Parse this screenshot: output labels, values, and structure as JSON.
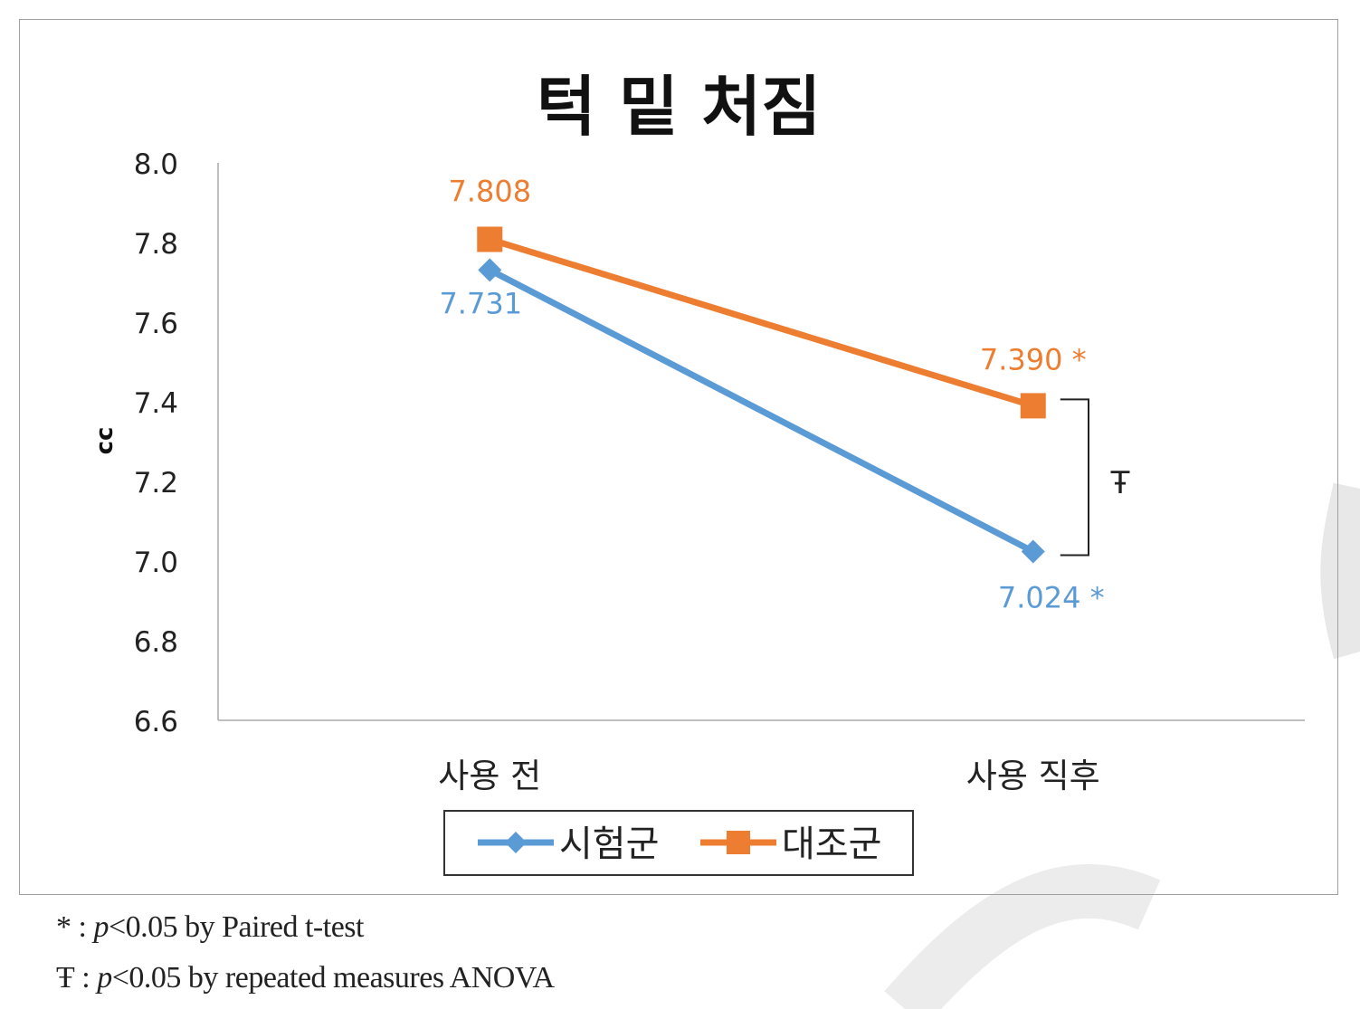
{
  "chart_data": {
    "type": "line",
    "title": "턱 밑 처짐",
    "ylabel": "cc",
    "xlabel": "",
    "categories": [
      "사용 전",
      "사용 직후"
    ],
    "ylim": [
      6.6,
      8.0
    ],
    "yticks": [
      "6.6",
      "6.8",
      "7.0",
      "7.2",
      "7.4",
      "7.6",
      "7.8",
      "8.0"
    ],
    "grid": false,
    "legend_position": "bottom",
    "series": [
      {
        "name": "시험군",
        "values": [
          7.731,
          7.024
        ],
        "data_labels": [
          "7.731",
          "7.024 *"
        ],
        "color": "#5b9bd5",
        "marker": "diamond-icon"
      },
      {
        "name": "대조군",
        "values": [
          7.808,
          7.39
        ],
        "data_labels": [
          "7.808",
          "7.390 *"
        ],
        "color": "#ed7d31",
        "marker": "square-icon"
      }
    ],
    "annotations": [
      {
        "text": "Ŧ",
        "between_series": [
          "시험군",
          "대조군"
        ],
        "category": "사용 직후"
      }
    ]
  },
  "footnotes": {
    "paired": {
      "symbol": "*",
      "sep": " : ",
      "p": "p",
      "rest": "<0.05 by Paired t-test"
    },
    "anova": {
      "symbol": "Ŧ",
      "sep": " : ",
      "p": "p",
      "rest": "<0.05 by repeated measures ANOVA"
    }
  },
  "colors": {
    "axis": "#bfbfbf",
    "text": "#222222",
    "watermark": "#e6e6e6"
  }
}
